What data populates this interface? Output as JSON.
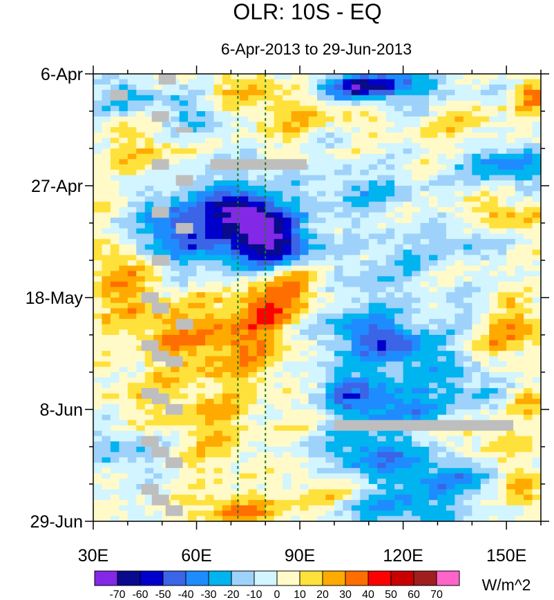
{
  "chart_data": {
    "type": "heatmap",
    "title": "OLR: 10S - EQ",
    "subtitle": "6-Apr-2013 to 29-Jun-2013",
    "x_axis": {
      "range": [
        30,
        160
      ],
      "ticks": [
        {
          "value": 30,
          "label": "30E"
        },
        {
          "value": 60,
          "label": "60E"
        },
        {
          "value": 90,
          "label": "90E"
        },
        {
          "value": 120,
          "label": "120E"
        },
        {
          "value": 150,
          "label": "150E"
        }
      ],
      "minor_every": 10
    },
    "y_axis": {
      "range_days": [
        0,
        84
      ],
      "direction": "downward (time increases)",
      "ticks": [
        {
          "day": 0,
          "label": "6-Apr"
        },
        {
          "day": 21,
          "label": "27-Apr"
        },
        {
          "day": 42,
          "label": "18-May"
        },
        {
          "day": 63,
          "label": "8-Jun"
        },
        {
          "day": 84,
          "label": "29-Jun"
        }
      ],
      "minor_every_days": 7
    },
    "reference_lines_lon": [
      72,
      80
    ],
    "colorbar": {
      "unit": "W/m^2",
      "levels": [
        -70,
        -60,
        -50,
        -40,
        -30,
        -20,
        -10,
        0,
        10,
        20,
        30,
        40,
        50,
        60,
        70
      ],
      "labels": [
        "-70",
        "-60",
        "-50",
        "-40",
        "-30",
        "-20",
        "-10",
        "0",
        "10",
        "20",
        "30",
        "40",
        "50",
        "60",
        "70"
      ],
      "colors": [
        "#8228e6",
        "#0a0a8c",
        "#0000cd",
        "#3c64e6",
        "#1e8cff",
        "#00b4f0",
        "#9ed2fa",
        "#d2f5ff",
        "#fffac8",
        "#ffe13c",
        "#ffaa00",
        "#ff6e00",
        "#ff0000",
        "#c80000",
        "#a01e1e",
        "#ff64c8"
      ]
    },
    "grid_resolution": {
      "lon_step": 2.5,
      "day_step": 1
    },
    "features": [
      {
        "lon": 95,
        "day": 10,
        "value": 18,
        "sx": 12,
        "sy": 3
      },
      {
        "lon": 80,
        "day": 3,
        "value": 22,
        "sx": 12,
        "sy": 3
      },
      {
        "lon": 110,
        "day": 2,
        "value": -35,
        "sx": 16,
        "sy": 2
      },
      {
        "lon": 110,
        "day": 3,
        "value": -30,
        "sx": 8,
        "sy": 2
      },
      {
        "lon": 40,
        "day": 4,
        "value": -25,
        "sx": 8,
        "sy": 2
      },
      {
        "lon": 60,
        "day": 8,
        "value": -22,
        "sx": 6,
        "sy": 3
      },
      {
        "lon": 100,
        "day": 12,
        "value": -18,
        "sx": 6,
        "sy": 2
      },
      {
        "lon": 140,
        "day": 11,
        "value": 15,
        "sx": 8,
        "sy": 3
      },
      {
        "lon": 150,
        "day": 17,
        "value": -35,
        "sx": 10,
        "sy": 3
      },
      {
        "lon": 157,
        "day": 4,
        "value": 30,
        "sx": 4,
        "sy": 2
      },
      {
        "lon": 45,
        "day": 15,
        "value": 18,
        "sx": 8,
        "sy": 3
      },
      {
        "lon": 70,
        "day": 28,
        "value": -45,
        "sx": 14,
        "sy": 6
      },
      {
        "lon": 82,
        "day": 32,
        "value": -50,
        "sx": 8,
        "sy": 3
      },
      {
        "lon": 74,
        "day": 26,
        "value": -45,
        "sx": 6,
        "sy": 2
      },
      {
        "lon": 50,
        "day": 30,
        "value": -28,
        "sx": 8,
        "sy": 4
      },
      {
        "lon": 110,
        "day": 22,
        "value": -20,
        "sx": 10,
        "sy": 3
      },
      {
        "lon": 150,
        "day": 27,
        "value": 20,
        "sx": 8,
        "sy": 3
      },
      {
        "lon": 140,
        "day": 31,
        "value": -20,
        "sx": 8,
        "sy": 2
      },
      {
        "lon": 120,
        "day": 34,
        "value": -15,
        "sx": 10,
        "sy": 3
      },
      {
        "lon": 38,
        "day": 38,
        "value": 28,
        "sx": 7,
        "sy": 6
      },
      {
        "lon": 88,
        "day": 40,
        "value": 28,
        "sx": 7,
        "sy": 3
      },
      {
        "lon": 70,
        "day": 50,
        "value": 30,
        "sx": 12,
        "sy": 6
      },
      {
        "lon": 80,
        "day": 44,
        "value": 22,
        "sx": 6,
        "sy": 3
      },
      {
        "lon": 108,
        "day": 48,
        "value": -32,
        "sx": 10,
        "sy": 3
      },
      {
        "lon": 120,
        "day": 52,
        "value": -35,
        "sx": 10,
        "sy": 3
      },
      {
        "lon": 140,
        "day": 45,
        "value": -18,
        "sx": 8,
        "sy": 3
      },
      {
        "lon": 150,
        "day": 48,
        "value": 30,
        "sx": 8,
        "sy": 4
      },
      {
        "lon": 110,
        "day": 40,
        "value": -15,
        "sx": 8,
        "sy": 3
      },
      {
        "lon": 45,
        "day": 60,
        "value": 12,
        "sx": 10,
        "sy": 4
      },
      {
        "lon": 65,
        "day": 64,
        "value": 15,
        "sx": 8,
        "sy": 3
      },
      {
        "lon": 92,
        "day": 61,
        "value": 12,
        "sx": 6,
        "sy": 4
      },
      {
        "lon": 115,
        "day": 62,
        "value": -38,
        "sx": 14,
        "sy": 3
      },
      {
        "lon": 100,
        "day": 58,
        "value": -22,
        "sx": 8,
        "sy": 3
      },
      {
        "lon": 140,
        "day": 58,
        "value": -18,
        "sx": 8,
        "sy": 3
      },
      {
        "lon": 155,
        "day": 61,
        "value": 22,
        "sx": 4,
        "sy": 2
      },
      {
        "lon": 38,
        "day": 71,
        "value": -20,
        "sx": 8,
        "sy": 3
      },
      {
        "lon": 65,
        "day": 71,
        "value": 12,
        "sx": 8,
        "sy": 4
      },
      {
        "lon": 110,
        "day": 71,
        "value": -35,
        "sx": 10,
        "sy": 3
      },
      {
        "lon": 130,
        "day": 76,
        "value": -32,
        "sx": 12,
        "sy": 3
      },
      {
        "lon": 120,
        "day": 82,
        "value": -30,
        "sx": 12,
        "sy": 2
      },
      {
        "lon": 72,
        "day": 82,
        "value": 32,
        "sx": 9,
        "sy": 2
      },
      {
        "lon": 95,
        "day": 79,
        "value": 15,
        "sx": 6,
        "sy": 3
      },
      {
        "lon": 155,
        "day": 78,
        "value": 30,
        "sx": 4,
        "sy": 3
      },
      {
        "lon": 145,
        "day": 69,
        "value": 15,
        "sx": 8,
        "sy": 3
      },
      {
        "lon": 50,
        "day": 48,
        "value": 18,
        "sx": 6,
        "sy": 4
      }
    ],
    "missing_data": [
      {
        "lon0": 49,
        "lon1": 54,
        "day0": 0,
        "day1": 2
      },
      {
        "lon0": 35,
        "lon1": 40,
        "day0": 3,
        "day1": 5
      },
      {
        "lon0": 47,
        "lon1": 52,
        "day0": 7,
        "day1": 9
      },
      {
        "lon0": 54,
        "lon1": 59,
        "day0": 10,
        "day1": 11
      },
      {
        "lon0": 47,
        "lon1": 52,
        "day0": 16,
        "day1": 18
      },
      {
        "lon0": 64,
        "lon1": 92,
        "day0": 16,
        "day1": 18
      },
      {
        "lon0": 54,
        "lon1": 59,
        "day0": 19,
        "day1": 21
      },
      {
        "lon0": 47,
        "lon1": 52,
        "day0": 25,
        "day1": 27
      },
      {
        "lon0": 54,
        "lon1": 59,
        "day0": 28,
        "day1": 30
      },
      {
        "lon0": 47,
        "lon1": 52,
        "day0": 34,
        "day1": 36
      },
      {
        "lon0": 44,
        "lon1": 49,
        "day0": 41,
        "day1": 43
      },
      {
        "lon0": 47,
        "lon1": 52,
        "day0": 43,
        "day1": 45
      },
      {
        "lon0": 54,
        "lon1": 59,
        "day0": 46,
        "day1": 48
      },
      {
        "lon0": 44,
        "lon1": 49,
        "day0": 50,
        "day1": 52
      },
      {
        "lon0": 47,
        "lon1": 52,
        "day0": 52,
        "day1": 54
      },
      {
        "lon0": 51,
        "lon1": 56,
        "day0": 53,
        "day1": 55
      },
      {
        "lon0": 44,
        "lon1": 49,
        "day0": 59,
        "day1": 61
      },
      {
        "lon0": 47,
        "lon1": 52,
        "day0": 60,
        "day1": 62
      },
      {
        "lon0": 51,
        "lon1": 56,
        "day0": 62,
        "day1": 64
      },
      {
        "lon0": 100,
        "lon1": 152,
        "day0": 65,
        "day1": 67
      },
      {
        "lon0": 44,
        "lon1": 49,
        "day0": 68,
        "day1": 70
      },
      {
        "lon0": 47,
        "lon1": 52,
        "day0": 70,
        "day1": 72
      },
      {
        "lon0": 51,
        "lon1": 56,
        "day0": 72,
        "day1": 74
      },
      {
        "lon0": 44,
        "lon1": 49,
        "day0": 77,
        "day1": 79
      },
      {
        "lon0": 47,
        "lon1": 52,
        "day0": 79,
        "day1": 81
      },
      {
        "lon0": 51,
        "lon1": 56,
        "day0": 81,
        "day1": 83
      }
    ]
  }
}
